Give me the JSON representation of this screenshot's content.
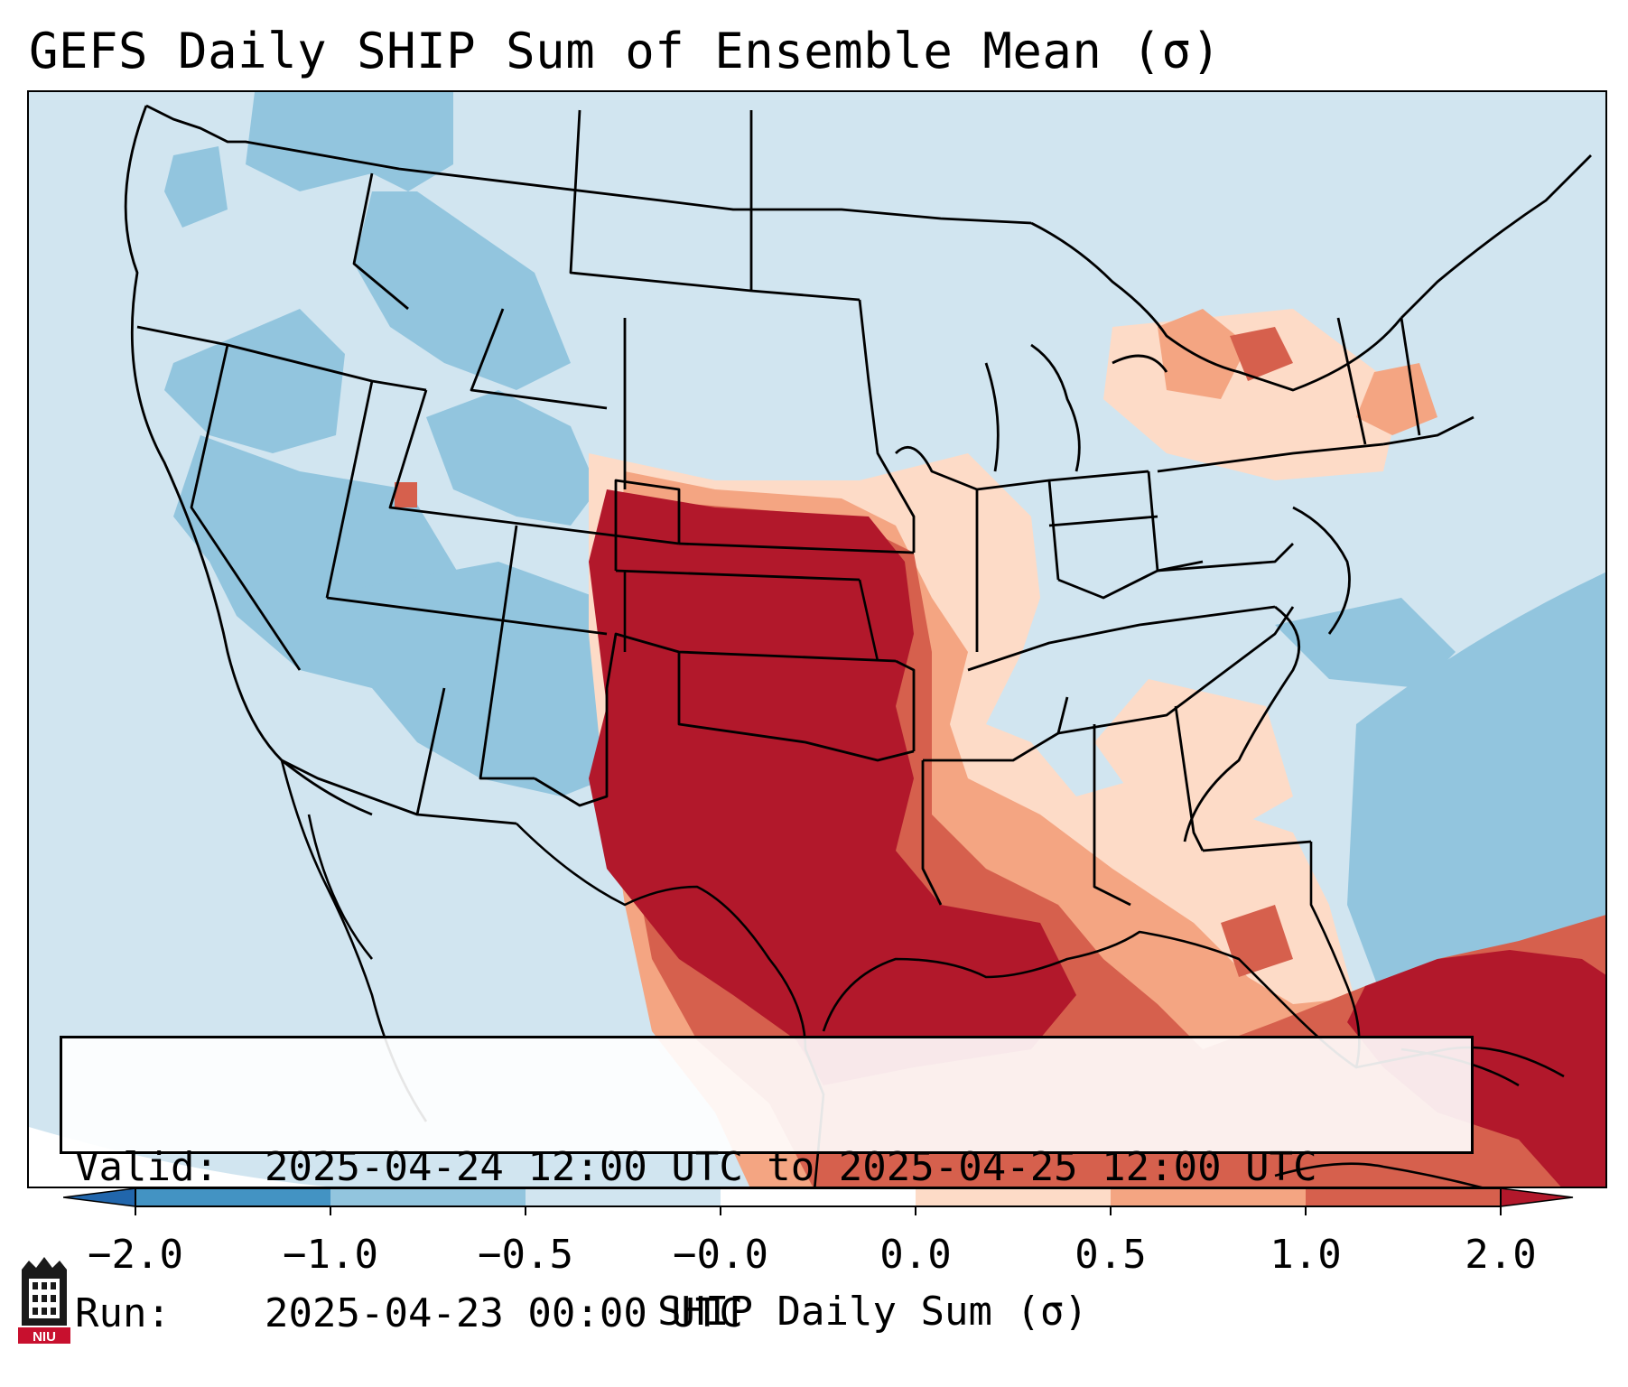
{
  "title": "GEFS Daily SHIP Sum of Ensemble Mean (σ)",
  "info": {
    "valid_label": "Valid:",
    "valid_value": "2025-04-24 12:00 UTC to 2025-04-25 12:00 UTC",
    "run_label": "Run:",
    "run_value": "2025-04-23 00:00 UTC"
  },
  "colorbar": {
    "label": "SHIP Daily Sum (σ)",
    "ticks": [
      "−2.0",
      "−1.0",
      "−0.5",
      "−0.0",
      "0.0",
      "0.5",
      "1.0",
      "2.0"
    ],
    "colors": [
      "#4393c3",
      "#92c5de",
      "#d1e5f0",
      "#fddbc7",
      "#f4a582",
      "#d6604d"
    ],
    "under_color": "#2166ac",
    "over_color": "#b2182b"
  },
  "map": {
    "region": "CONUS",
    "background_color": "#d1e5f0",
    "negative_color": "#92c5de",
    "peak_color": "#b2182b",
    "high_color": "#d6604d",
    "mid_color": "#f4a582",
    "low_color": "#fddbc7"
  },
  "logo": {
    "text": "NIU"
  }
}
